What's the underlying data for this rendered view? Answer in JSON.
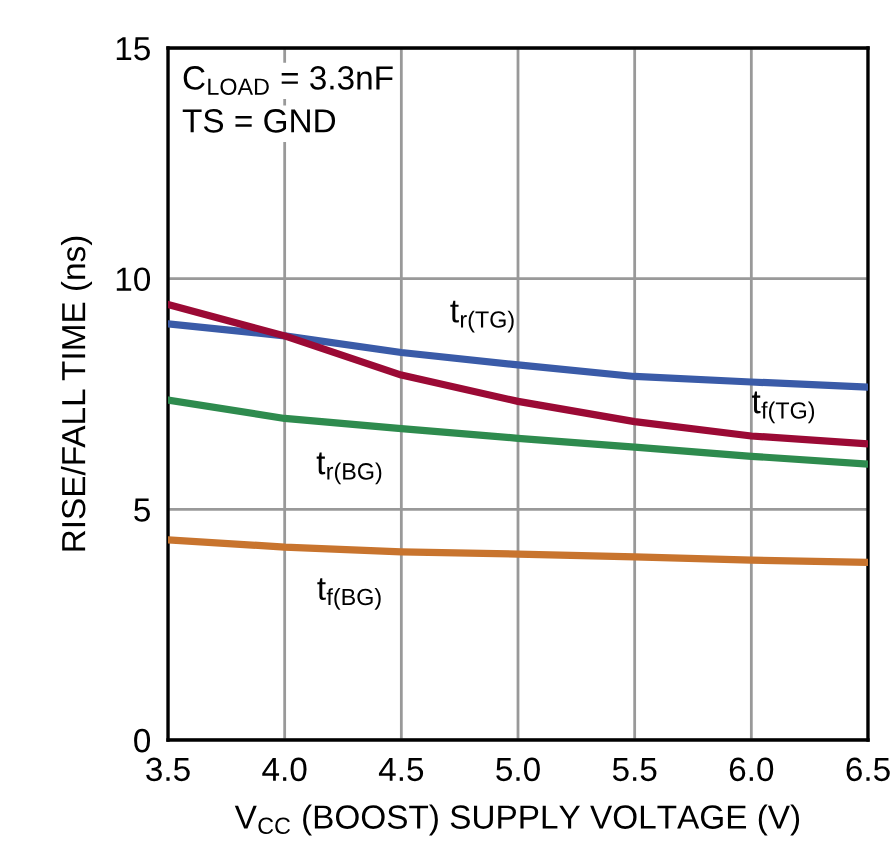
{
  "chart_data": {
    "type": "line",
    "xlabel": "V$_{CC}$ (BOOST) SUPPLY VOLTAGE (V)",
    "ylabel": "RISE/FALL TIME (ns)",
    "x": [
      3.5,
      4.0,
      4.5,
      5.0,
      5.5,
      6.0,
      6.5
    ],
    "series": [
      {
        "name": "t$_{r(TG)}$",
        "color": "#3a5ba8",
        "values": [
          9.02,
          8.76,
          8.4,
          8.13,
          7.88,
          7.76,
          7.65
        ]
      },
      {
        "name": "t$_{f(TG)}$",
        "color": "#9b0a35",
        "values": [
          9.44,
          8.76,
          7.91,
          7.34,
          6.9,
          6.59,
          6.42
        ]
      },
      {
        "name": "t$_{r(BG)}$",
        "color": "#2e8b4e",
        "values": [
          7.37,
          6.97,
          6.75,
          6.54,
          6.35,
          6.15,
          5.98
        ]
      },
      {
        "name": "t$_{f(BG)}$",
        "color": "#c8742e",
        "values": [
          4.34,
          4.18,
          4.08,
          4.03,
          3.97,
          3.9,
          3.85
        ]
      }
    ],
    "annotations": [
      "C$_{LOAD}$ = 3.3nF",
      "TS = GND"
    ],
    "xlim": [
      3.5,
      6.5
    ],
    "ylim": [
      0,
      15
    ],
    "xticks": [
      3.5,
      {
        "value": 4,
        "label": "4.0"
      },
      4.5,
      {
        "value": 5,
        "label": "5.0"
      },
      5.5,
      {
        "value": 6,
        "label": "6.0"
      },
      6.5
    ],
    "yticks": [
      0,
      5,
      10,
      15
    ],
    "grid": true,
    "line_style": "solid",
    "marker": "none"
  }
}
